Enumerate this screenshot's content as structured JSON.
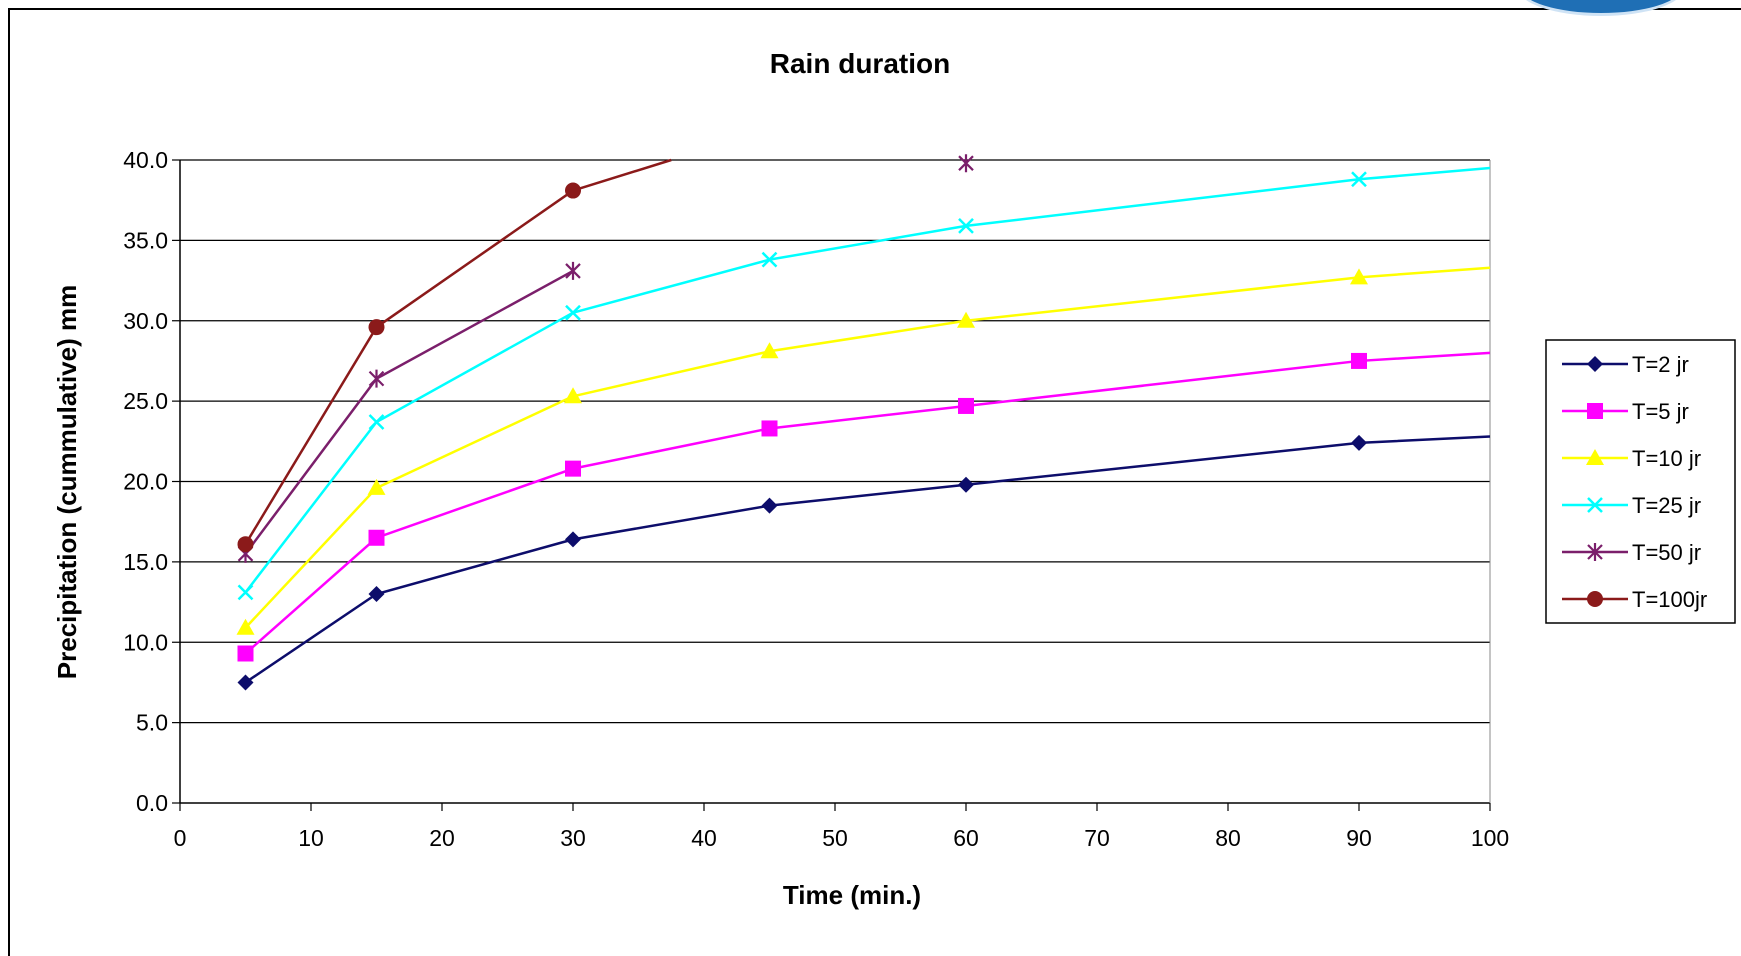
{
  "chart_data": {
    "type": "line",
    "title": "Rain duration",
    "xlabel": "Time (min.)",
    "ylabel": "Precipitation (cummulative) mm",
    "xlim": [
      0,
      100
    ],
    "ylim": [
      0,
      40
    ],
    "xticks": [
      "0",
      "10",
      "20",
      "30",
      "40",
      "50",
      "60",
      "70",
      "80",
      "90",
      "100"
    ],
    "yticks": [
      "0.0",
      "5.0",
      "10.0",
      "15.0",
      "20.0",
      "25.0",
      "30.0",
      "35.0",
      "40.0"
    ],
    "grid": "horizontal",
    "legend_position": "right",
    "series": [
      {
        "name": "T=2 jr",
        "color": "#0d0d6b",
        "marker": "diamond",
        "x": [
          5,
          15,
          30,
          45,
          60,
          90
        ],
        "y": [
          7.5,
          13.0,
          16.4,
          18.5,
          19.8,
          22.4
        ],
        "line_x": [
          5,
          15,
          30,
          45,
          60,
          90,
          100
        ],
        "line_y": [
          7.5,
          13.0,
          16.4,
          18.5,
          19.8,
          22.4,
          22.8
        ]
      },
      {
        "name": "T=5 jr",
        "color": "#ff00ff",
        "marker": "square",
        "x": [
          5,
          15,
          30,
          45,
          60,
          90
        ],
        "y": [
          9.3,
          16.5,
          20.8,
          23.3,
          24.7,
          27.5
        ],
        "line_x": [
          5,
          15,
          30,
          45,
          60,
          90,
          100
        ],
        "line_y": [
          9.3,
          16.5,
          20.8,
          23.3,
          24.7,
          27.5,
          28.0
        ]
      },
      {
        "name": "T=10 jr",
        "color": "#ffff00",
        "marker": "triangle",
        "x": [
          5,
          15,
          30,
          45,
          60,
          90
        ],
        "y": [
          10.9,
          19.6,
          25.3,
          28.1,
          30.0,
          32.7
        ],
        "line_x": [
          5,
          15,
          30,
          45,
          60,
          90,
          100
        ],
        "line_y": [
          10.9,
          19.6,
          25.3,
          28.1,
          30.0,
          32.7,
          33.3
        ]
      },
      {
        "name": "T=25 jr",
        "color": "#00ffff",
        "marker": "x",
        "x": [
          5,
          15,
          30,
          45,
          60,
          90
        ],
        "y": [
          13.1,
          23.7,
          30.5,
          33.8,
          35.9,
          38.8
        ],
        "line_x": [
          5,
          15,
          30,
          45,
          60,
          90,
          100
        ],
        "line_y": [
          13.1,
          23.7,
          30.5,
          33.8,
          35.9,
          38.8,
          39.5
        ]
      },
      {
        "name": "T=50 jr",
        "color": "#7b1f6b",
        "marker": "asterisk",
        "x": [
          5,
          15,
          30,
          60
        ],
        "y": [
          15.5,
          26.4,
          33.1,
          39.8
        ],
        "line_x": [
          5,
          15,
          30
        ],
        "line_y": [
          15.5,
          26.4,
          33.1
        ]
      },
      {
        "name": "T=100jr",
        "color": "#8b1a1a",
        "marker": "circle",
        "x": [
          5,
          15,
          30
        ],
        "y": [
          16.1,
          29.6,
          38.1
        ],
        "line_x": [
          5,
          15,
          30,
          37.5
        ],
        "line_y": [
          16.1,
          29.6,
          38.1,
          40.0
        ]
      }
    ]
  }
}
